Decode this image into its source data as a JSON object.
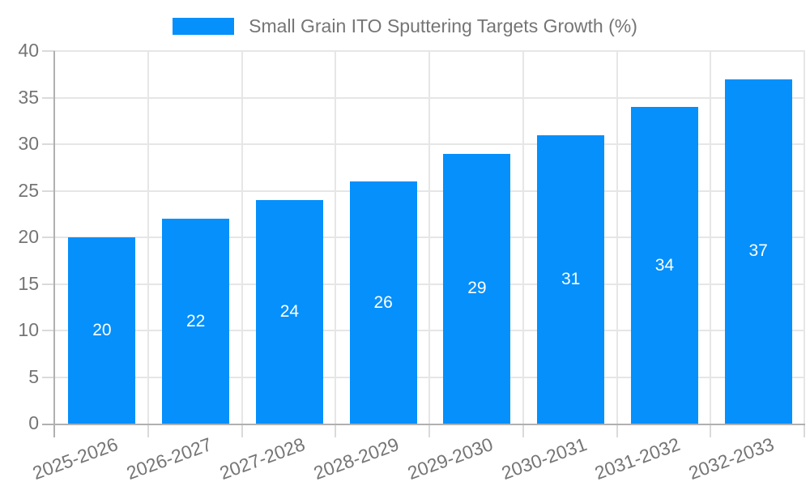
{
  "chart_data": {
    "type": "bar",
    "title": "Small Grain ITO Sputtering Targets Growth (%)",
    "categories": [
      "2025-2026",
      "2026-2027",
      "2027-2028",
      "2028-2029",
      "2029-2030",
      "2030-2031",
      "2031-2032",
      "2032-2033"
    ],
    "values": [
      20,
      22,
      24,
      26,
      29,
      31,
      34,
      37
    ],
    "xlabel": "",
    "ylabel": "",
    "ylim": [
      0,
      40
    ],
    "yticks": [
      0,
      5,
      10,
      15,
      20,
      25,
      30,
      35,
      40
    ],
    "grid": "on",
    "legend_position": "top-center",
    "bar_value_labels_shown": true,
    "colors": {
      "bar": "#0590fb",
      "data_label": "#ffffff",
      "axis_text": "#757575",
      "grid": "#e6e6e6",
      "tick": "#dadada",
      "axis_line": "#b0b0b0",
      "background": "#ffffff"
    }
  }
}
